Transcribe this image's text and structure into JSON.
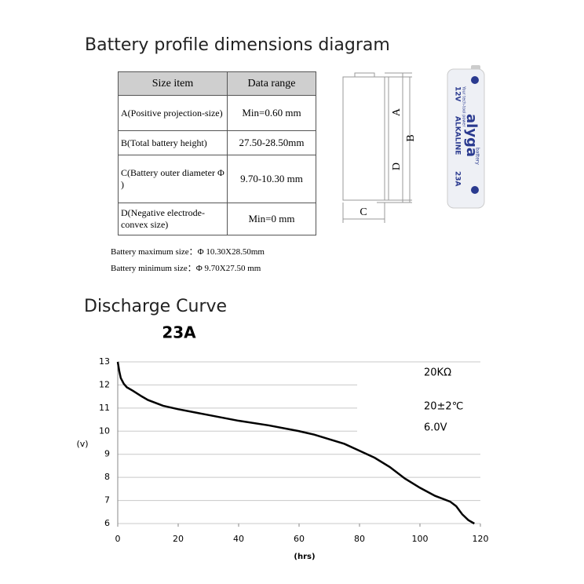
{
  "section1": {
    "title": "Battery profile dimensions diagram",
    "table": {
      "header": [
        "Size item",
        "Data range"
      ],
      "rows": [
        [
          "A(Positive projection-size)",
          "Min=0.60 mm"
        ],
        [
          "B(Total battery height)",
          "27.50-28.50mm"
        ],
        [
          "C(Battery outer diameter Φ )",
          "9.70-10.30 mm"
        ],
        [
          "D(Negative electrode-convex size)",
          "Min=0 mm"
        ]
      ]
    },
    "notes": [
      "Battery maximum size：Φ 10.30X28.50mm",
      "Battery minimum size：Φ 9.70X27.50 mm"
    ],
    "diagram_labels": [
      "A",
      "B",
      "D",
      "C"
    ],
    "photo": {
      "brand": "alyga",
      "voltage": "12V",
      "chemistry": "ALKALINE",
      "model": "23A",
      "slogan": "Your tech-tool power",
      "word": "battery"
    }
  },
  "section2": {
    "title": "Discharge Curve"
  },
  "chart_data": {
    "type": "line",
    "title": "23A",
    "x": [
      0,
      0.5,
      1,
      2,
      3,
      5,
      8,
      10,
      15,
      20,
      30,
      40,
      50,
      60,
      65,
      70,
      75,
      80,
      85,
      90,
      95,
      100,
      105,
      110,
      112,
      114,
      116,
      118
    ],
    "values": [
      13.0,
      12.6,
      12.3,
      12.05,
      11.9,
      11.75,
      11.5,
      11.35,
      11.1,
      10.95,
      10.7,
      10.45,
      10.25,
      10.0,
      9.85,
      9.65,
      9.45,
      9.15,
      8.85,
      8.45,
      7.95,
      7.55,
      7.2,
      6.95,
      6.75,
      6.4,
      6.15,
      6.0
    ],
    "color": "#000000",
    "xlim": [
      0,
      120
    ],
    "xticks": [
      0,
      20,
      40,
      60,
      80,
      100,
      120
    ],
    "ylim": [
      6,
      13
    ],
    "yticks": [
      6,
      7,
      8,
      9,
      10,
      11,
      12,
      13
    ],
    "grid": true,
    "xlabel": "(hrs)",
    "ylabel": "(v)",
    "annotations": [
      "20KΩ",
      "20±2℃",
      "6.0V"
    ]
  }
}
